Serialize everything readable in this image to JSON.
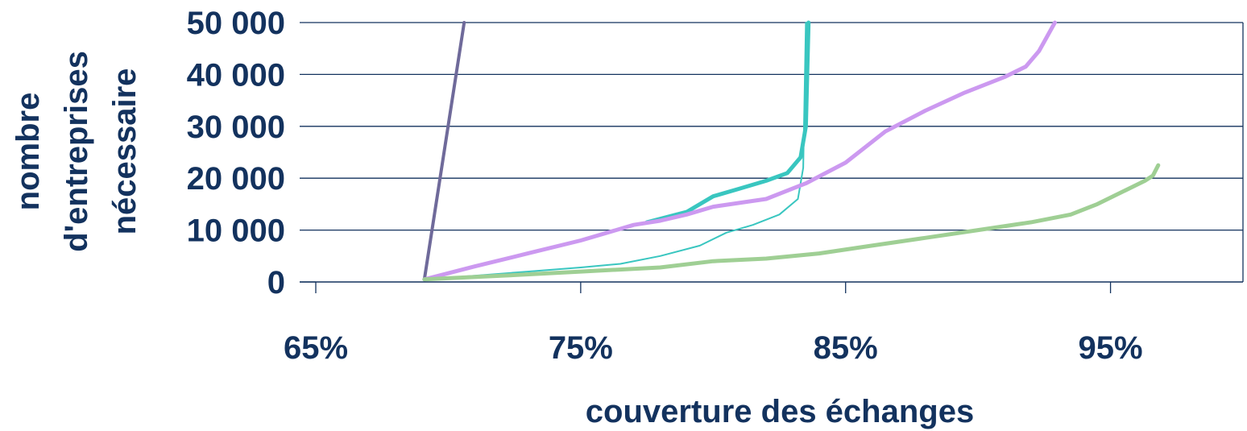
{
  "chart_data": {
    "type": "line",
    "title": "",
    "xlabel": "couverture des échanges",
    "ylabel": [
      "nombre",
      "d'entreprises",
      "nécessaire"
    ],
    "xlim": [
      65,
      100
    ],
    "ylim": [
      0,
      50000
    ],
    "x_ticks": [
      65,
      75,
      85,
      95
    ],
    "x_tick_labels": [
      "65%",
      "75%",
      "85%",
      "95%"
    ],
    "y_ticks": [
      0,
      10000,
      20000,
      30000,
      40000,
      50000
    ],
    "y_tick_labels": [
      "0",
      "10 000",
      "20 000",
      "30 000",
      "40 000",
      "50 000"
    ],
    "grid": "horizontal",
    "legend": "none",
    "series": [
      {
        "color": "#6f6a9a",
        "width": 4,
        "points": [
          [
            69.1,
            500
          ],
          [
            70.6,
            50000
          ]
        ]
      },
      {
        "color": "#39c6c0",
        "width": 2,
        "points": [
          [
            69.1,
            500
          ],
          [
            71,
            1200
          ],
          [
            73,
            2000
          ],
          [
            75,
            2800
          ],
          [
            76.5,
            3500
          ],
          [
            78,
            5000
          ],
          [
            79.5,
            7000
          ],
          [
            80.5,
            9500
          ],
          [
            81.5,
            11000
          ],
          [
            82.5,
            13000
          ],
          [
            83.2,
            16000
          ],
          [
            83.4,
            22000
          ],
          [
            83.5,
            50000
          ]
        ]
      },
      {
        "color": "#39c6c0",
        "width": 5,
        "points": [
          [
            77.5,
            11500
          ],
          [
            79,
            13500
          ],
          [
            80,
            16500
          ],
          [
            81,
            18000
          ],
          [
            82,
            19500
          ],
          [
            82.8,
            21000
          ],
          [
            83.3,
            24000
          ],
          [
            83.5,
            30000
          ],
          [
            83.6,
            50000
          ]
        ]
      },
      {
        "color": "#cc99f0",
        "width": 5,
        "points": [
          [
            69.1,
            500
          ],
          [
            71,
            3000
          ],
          [
            73,
            5500
          ],
          [
            75,
            8000
          ],
          [
            77,
            11000
          ],
          [
            78,
            11800
          ],
          [
            79,
            13000
          ],
          [
            80,
            14500
          ],
          [
            82,
            16000
          ],
          [
            83.5,
            19000
          ],
          [
            85,
            23000
          ],
          [
            86.5,
            29000
          ],
          [
            88,
            33000
          ],
          [
            89.5,
            36500
          ],
          [
            91,
            39500
          ],
          [
            91.8,
            41500
          ],
          [
            92.3,
            44500
          ],
          [
            92.9,
            50000
          ]
        ]
      },
      {
        "color": "#9fcf94",
        "width": 5,
        "points": [
          [
            69.1,
            500
          ],
          [
            72,
            1200
          ],
          [
            75,
            2000
          ],
          [
            78,
            2800
          ],
          [
            80,
            4000
          ],
          [
            82,
            4500
          ],
          [
            84,
            5500
          ],
          [
            86,
            7000
          ],
          [
            88,
            8500
          ],
          [
            90,
            10000
          ],
          [
            92,
            11500
          ],
          [
            93.5,
            13000
          ],
          [
            94.5,
            15000
          ],
          [
            95.5,
            17500
          ],
          [
            96.3,
            19500
          ],
          [
            96.6,
            20500
          ],
          [
            96.8,
            22500
          ]
        ]
      }
    ]
  }
}
